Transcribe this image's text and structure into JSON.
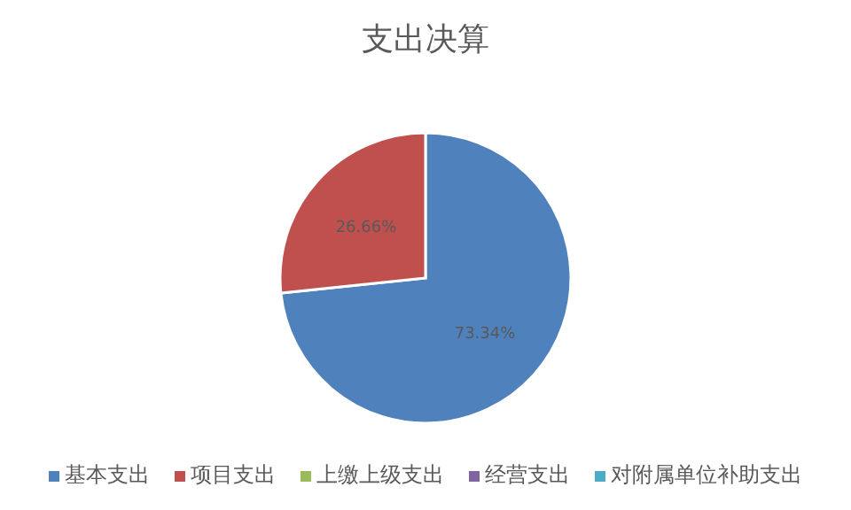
{
  "chart_data": {
    "type": "pie",
    "title": "支出决算",
    "categories": [
      "基本支出",
      "项目支出",
      "上缴上级支出",
      "经营支出",
      "对附属单位补助支出"
    ],
    "values": [
      73.34,
      26.66,
      0,
      0,
      0
    ],
    "colors": [
      "#4f81bd",
      "#c0504d",
      "#9bbb59",
      "#8064a2",
      "#4bacc6"
    ],
    "value_labels": [
      "73.34%",
      "26.66%",
      null,
      null,
      null
    ],
    "legend": "bottom"
  }
}
